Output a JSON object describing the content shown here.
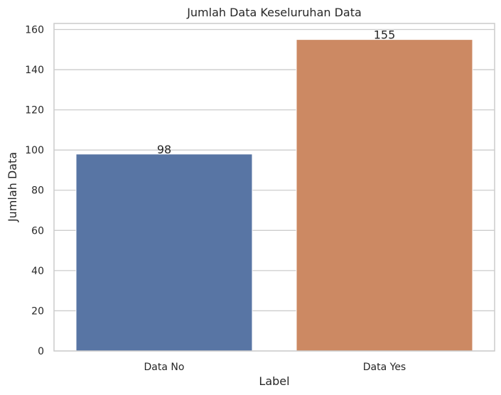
{
  "chart_data": {
    "type": "bar",
    "title": "Jumlah Data Keseluruhan Data",
    "xlabel": "Label",
    "ylabel": "Jumlah Data",
    "categories": [
      "Data No",
      "Data Yes"
    ],
    "values": [
      98,
      155
    ],
    "data_labels": [
      "98",
      "155"
    ],
    "colors": [
      "#5875a4",
      "#cc8963"
    ],
    "ylim": [
      0,
      163
    ],
    "yticks": [
      0,
      20,
      40,
      60,
      80,
      100,
      120,
      140,
      160
    ],
    "grid": true,
    "grid_axis": "y",
    "legend": "none"
  }
}
